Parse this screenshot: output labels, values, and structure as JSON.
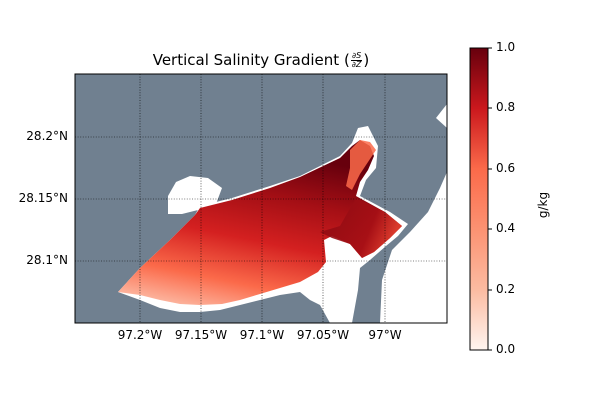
{
  "title_prefix": "Vertical Salinity Gradient (",
  "title_num": "∂S",
  "title_den": "∂Z",
  "title_suffix": ")",
  "map": {
    "lat_ticks": [
      "28.2°N",
      "28.15°N",
      "28.1°N"
    ],
    "lon_ticks": [
      "97.2°W",
      "97.15°W",
      "97.1°W",
      "97.05°W",
      "97°W"
    ],
    "land_color": "#708090",
    "water_color": "#ffffff"
  },
  "colorbar": {
    "label": "g/kg",
    "ticks": [
      "1.0",
      "0.8",
      "0.6",
      "0.4",
      "0.2",
      "0.0"
    ],
    "range": [
      0.0,
      1.0
    ],
    "colormap": "Reds"
  }
}
